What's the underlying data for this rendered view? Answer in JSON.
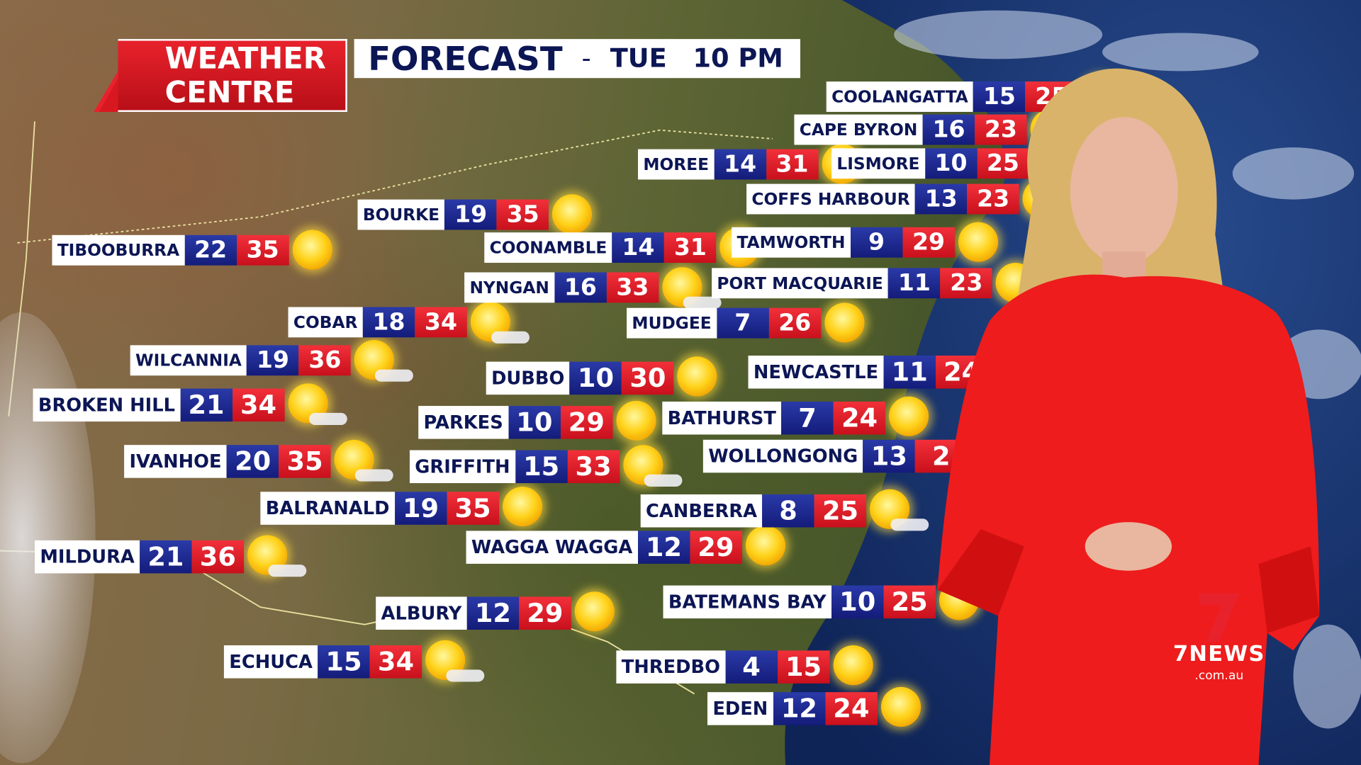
{
  "branding": {
    "logo_numeral": "7",
    "title_line1": "WEATHER",
    "title_line2": "CENTRE",
    "news_logo": "7NEWS",
    "news_domain": ".com.au"
  },
  "header": {
    "label": "FORECAST",
    "separator": "-",
    "day": "TUE",
    "time": "10 PM"
  },
  "colors": {
    "min_box": "#1a2388",
    "max_box": "#e0202a",
    "label_text": "#0c1655",
    "brand_red": "#e8222c"
  },
  "forecasts": [
    {
      "name": "COOLANGATTA",
      "min": "15",
      "max": "25",
      "icon": "sun-icon"
    },
    {
      "name": "CAPE BYRON",
      "min": "16",
      "max": "23",
      "icon": "sun-cloud-icon"
    },
    {
      "name": "MOREE",
      "min": "14",
      "max": "31",
      "icon": "sun-icon"
    },
    {
      "name": "LISMORE",
      "min": "10",
      "max": "25",
      "icon": "sun-cloud-icon"
    },
    {
      "name": "COFFS HARBOUR",
      "min": "13",
      "max": "23",
      "icon": "sun-cloud-icon"
    },
    {
      "name": "BOURKE",
      "min": "19",
      "max": "35",
      "icon": "sun-icon"
    },
    {
      "name": "TIBOOBURRA",
      "min": "22",
      "max": "35",
      "icon": "sun-icon"
    },
    {
      "name": "COONAMBLE",
      "min": "14",
      "max": "31",
      "icon": "sun-icon"
    },
    {
      "name": "TAMWORTH",
      "min": "9",
      "max": "29",
      "icon": "sun-icon"
    },
    {
      "name": "NYNGAN",
      "min": "16",
      "max": "33",
      "icon": "sun-cloud-icon"
    },
    {
      "name": "PORT MACQUARIE",
      "min": "11",
      "max": "23",
      "icon": "sun-icon"
    },
    {
      "name": "COBAR",
      "min": "18",
      "max": "34",
      "icon": "sun-cloud-icon"
    },
    {
      "name": "MUDGEE",
      "min": "7",
      "max": "26",
      "icon": "sun-icon"
    },
    {
      "name": "WILCANNIA",
      "min": "19",
      "max": "36",
      "icon": "sun-cloud-icon"
    },
    {
      "name": "DUBBO",
      "min": "10",
      "max": "30",
      "icon": "sun-icon"
    },
    {
      "name": "NEWCASTLE",
      "min": "11",
      "max": "24",
      "icon": "sun-icon"
    },
    {
      "name": "BROKEN HILL",
      "min": "21",
      "max": "34",
      "icon": "sun-cloud-icon"
    },
    {
      "name": "PARKES",
      "min": "10",
      "max": "29",
      "icon": "sun-icon"
    },
    {
      "name": "BATHURST",
      "min": "7",
      "max": "24",
      "icon": "sun-icon"
    },
    {
      "name": "IVANHOE",
      "min": "20",
      "max": "35",
      "icon": "sun-cloud-icon"
    },
    {
      "name": "GRIFFITH",
      "min": "15",
      "max": "33",
      "icon": "sun-cloud-icon"
    },
    {
      "name": "WOLLONGONG",
      "min": "13",
      "max": "2",
      "icon": "sun-icon"
    },
    {
      "name": "BALRANALD",
      "min": "19",
      "max": "35",
      "icon": "sun-icon"
    },
    {
      "name": "CANBERRA",
      "min": "8",
      "max": "25",
      "icon": "sun-cloud-icon"
    },
    {
      "name": "WAGGA WAGGA",
      "min": "12",
      "max": "29",
      "icon": "sun-icon"
    },
    {
      "name": "MILDURA",
      "min": "21",
      "max": "36",
      "icon": "sun-cloud-icon"
    },
    {
      "name": "BATEMANS BAY",
      "min": "10",
      "max": "25",
      "icon": "sun-icon"
    },
    {
      "name": "ALBURY",
      "min": "12",
      "max": "29",
      "icon": "sun-icon"
    },
    {
      "name": "ECHUCA",
      "min": "15",
      "max": "34",
      "icon": "sun-cloud-icon"
    },
    {
      "name": "THREDBO",
      "min": "4",
      "max": "15",
      "icon": "sun-icon"
    },
    {
      "name": "EDEN",
      "min": "12",
      "max": "24",
      "icon": "sun-icon"
    }
  ]
}
